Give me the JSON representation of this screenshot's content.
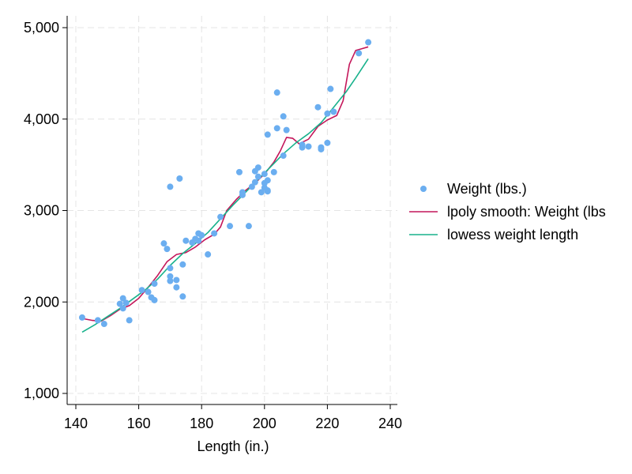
{
  "chart_data": {
    "type": "scatter",
    "xlabel": "Length (in.)",
    "ylabel": "",
    "xlim": [
      140,
      240
    ],
    "ylim": [
      1000,
      5000
    ],
    "x_ticks": [
      140,
      160,
      180,
      200,
      220,
      240
    ],
    "x_tick_labels": [
      "140",
      "160",
      "180",
      "200",
      "220",
      "240"
    ],
    "y_ticks": [
      1000,
      2000,
      3000,
      4000,
      5000
    ],
    "y_tick_labels": [
      "1,000",
      "2,000",
      "3,000",
      "4,000",
      "5,000"
    ],
    "grid": true,
    "legend_position": "right",
    "series": [
      {
        "name": "Weight (lbs.)",
        "kind": "scatter",
        "color": "#6baef0",
        "points": [
          [
            142,
            1830
          ],
          [
            147,
            1800
          ],
          [
            149,
            1760
          ],
          [
            154,
            1980
          ],
          [
            155,
            2040
          ],
          [
            155,
            1930
          ],
          [
            156,
            1990
          ],
          [
            157,
            1800
          ],
          [
            161,
            2130
          ],
          [
            163,
            2110
          ],
          [
            164,
            2050
          ],
          [
            165,
            2020
          ],
          [
            165,
            2200
          ],
          [
            168,
            2640
          ],
          [
            169,
            2580
          ],
          [
            170,
            2370
          ],
          [
            170,
            2230
          ],
          [
            170,
            2280
          ],
          [
            170,
            3260
          ],
          [
            172,
            2160
          ],
          [
            172,
            2240
          ],
          [
            173,
            3350
          ],
          [
            174,
            2060
          ],
          [
            174,
            2410
          ],
          [
            175,
            2670
          ],
          [
            177,
            2650
          ],
          [
            178,
            2690
          ],
          [
            179,
            2750
          ],
          [
            179,
            2670
          ],
          [
            180,
            2730
          ],
          [
            182,
            2520
          ],
          [
            184,
            2750
          ],
          [
            186,
            2930
          ],
          [
            189,
            2830
          ],
          [
            192,
            3420
          ],
          [
            193,
            3170
          ],
          [
            193,
            3200
          ],
          [
            195,
            2830
          ],
          [
            196,
            3260
          ],
          [
            197,
            3430
          ],
          [
            197,
            3310
          ],
          [
            198,
            3470
          ],
          [
            198,
            3370
          ],
          [
            199,
            3200
          ],
          [
            200,
            3250
          ],
          [
            200,
            3300
          ],
          [
            200,
            3400
          ],
          [
            201,
            3210
          ],
          [
            201,
            3220
          ],
          [
            201,
            3330
          ],
          [
            201,
            3830
          ],
          [
            203,
            3420
          ],
          [
            204,
            4290
          ],
          [
            204,
            3900
          ],
          [
            206,
            4030
          ],
          [
            206,
            3600
          ],
          [
            207,
            3880
          ],
          [
            212,
            3690
          ],
          [
            212,
            3720
          ],
          [
            214,
            3700
          ],
          [
            217,
            4130
          ],
          [
            218,
            3670
          ],
          [
            218,
            3690
          ],
          [
            220,
            3740
          ],
          [
            220,
            4060
          ],
          [
            221,
            4330
          ],
          [
            222,
            4080
          ],
          [
            230,
            4720
          ],
          [
            233,
            4840
          ]
        ]
      },
      {
        "name": "lpoly smooth: Weight (lbs",
        "kind": "line",
        "color": "#c4165a",
        "points": [
          [
            142,
            1820
          ],
          [
            145,
            1800
          ],
          [
            148,
            1790
          ],
          [
            151,
            1850
          ],
          [
            154,
            1920
          ],
          [
            157,
            1960
          ],
          [
            160,
            2040
          ],
          [
            163,
            2160
          ],
          [
            166,
            2290
          ],
          [
            169,
            2440
          ],
          [
            172,
            2520
          ],
          [
            175,
            2540
          ],
          [
            178,
            2600
          ],
          [
            181,
            2680
          ],
          [
            184,
            2740
          ],
          [
            186,
            2820
          ],
          [
            188,
            3000
          ],
          [
            191,
            3120
          ],
          [
            194,
            3220
          ],
          [
            197,
            3300
          ],
          [
            200,
            3400
          ],
          [
            203,
            3530
          ],
          [
            205,
            3650
          ],
          [
            207,
            3800
          ],
          [
            209,
            3790
          ],
          [
            211,
            3730
          ],
          [
            214,
            3780
          ],
          [
            217,
            3920
          ],
          [
            220,
            3990
          ],
          [
            223,
            4040
          ],
          [
            225,
            4200
          ],
          [
            227,
            4600
          ],
          [
            229,
            4750
          ],
          [
            231,
            4770
          ],
          [
            233,
            4790
          ]
        ]
      },
      {
        "name": "lowess weight length",
        "kind": "line",
        "color": "#18b28c",
        "points": [
          [
            142,
            1670
          ],
          [
            146,
            1750
          ],
          [
            150,
            1840
          ],
          [
            154,
            1930
          ],
          [
            158,
            2030
          ],
          [
            162,
            2130
          ],
          [
            166,
            2250
          ],
          [
            170,
            2400
          ],
          [
            174,
            2530
          ],
          [
            178,
            2640
          ],
          [
            182,
            2760
          ],
          [
            186,
            2910
          ],
          [
            190,
            3060
          ],
          [
            194,
            3200
          ],
          [
            198,
            3340
          ],
          [
            202,
            3480
          ],
          [
            206,
            3620
          ],
          [
            210,
            3740
          ],
          [
            214,
            3840
          ],
          [
            218,
            3960
          ],
          [
            222,
            4130
          ],
          [
            226,
            4300
          ],
          [
            229,
            4450
          ],
          [
            233,
            4660
          ]
        ]
      }
    ]
  }
}
